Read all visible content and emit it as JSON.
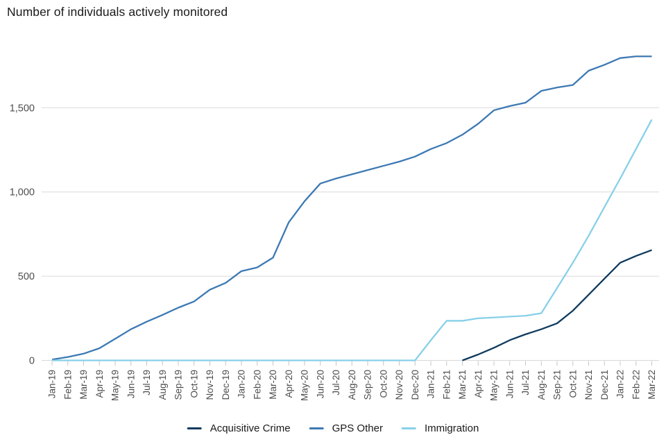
{
  "title": "Number of individuals actively monitored",
  "colors": {
    "acquisitive_crime": "#0e3a5e",
    "gps_other": "#3d79b3",
    "immigration": "#87d0e8",
    "gridline": "#d9d9d9",
    "tick": "#c5c5c5",
    "axis_text": "#4d4d4d",
    "title_text": "#1a1a1a"
  },
  "chart_data": {
    "type": "line",
    "title": "Number of individuals actively monitored",
    "xlabel": "",
    "ylabel": "",
    "grid": "horizontal",
    "legend_position": "bottom",
    "ylim": [
      0,
      1890
    ],
    "yticks": [
      {
        "value": 0,
        "label": "0"
      },
      {
        "value": 500,
        "label": "500"
      },
      {
        "value": 1000,
        "label": "1,000"
      },
      {
        "value": 1500,
        "label": "1,500"
      }
    ],
    "categories": [
      "Jan-19",
      "Feb-19",
      "Mar-19",
      "Apr-19",
      "May-19",
      "Jun-19",
      "Jul-19",
      "Aug-19",
      "Sep-19",
      "Oct-19",
      "Nov-19",
      "Dec-19",
      "Jan-20",
      "Feb-20",
      "Mar-20",
      "Apr-20",
      "May-20",
      "Jun-20",
      "Jul-20",
      "Aug-20",
      "Sep-20",
      "Oct-20",
      "Nov-20",
      "Dec-20",
      "Jan-21",
      "Feb-21",
      "Mar-21",
      "Apr-21",
      "May-21",
      "Jun-21",
      "Jul-21",
      "Aug-21",
      "Sep-21",
      "Oct-21",
      "Nov-21",
      "Dec-21",
      "Jan-22",
      "Feb-22",
      "Mar-22"
    ],
    "series": [
      {
        "name": "Acquisitive Crime",
        "color": "#0e3a5e",
        "values": [
          null,
          null,
          null,
          null,
          null,
          null,
          null,
          null,
          null,
          null,
          null,
          null,
          null,
          null,
          null,
          null,
          null,
          null,
          null,
          null,
          null,
          null,
          null,
          null,
          null,
          null,
          0,
          35,
          75,
          120,
          155,
          185,
          220,
          295,
          390,
          485,
          580,
          620,
          655
        ]
      },
      {
        "name": "GPS Other",
        "color": "#3d79b3",
        "values": [
          5,
          20,
          40,
          72,
          128,
          185,
          230,
          270,
          313,
          350,
          420,
          460,
          530,
          552,
          610,
          820,
          945,
          1050,
          1080,
          1105,
          1130,
          1155,
          1180,
          1210,
          1255,
          1290,
          1340,
          1405,
          1485,
          1510,
          1530,
          1600,
          1620,
          1635,
          1720,
          1755,
          1795,
          1805,
          1805
        ]
      },
      {
        "name": "Immigration",
        "color": "#87d0e8",
        "values": [
          0,
          0,
          0,
          0,
          0,
          0,
          0,
          0,
          0,
          0,
          0,
          0,
          0,
          0,
          0,
          0,
          0,
          0,
          0,
          0,
          0,
          0,
          0,
          0,
          120,
          235,
          235,
          250,
          255,
          260,
          265,
          280,
          430,
          580,
          740,
          910,
          1080,
          1255,
          1430
        ]
      }
    ]
  }
}
